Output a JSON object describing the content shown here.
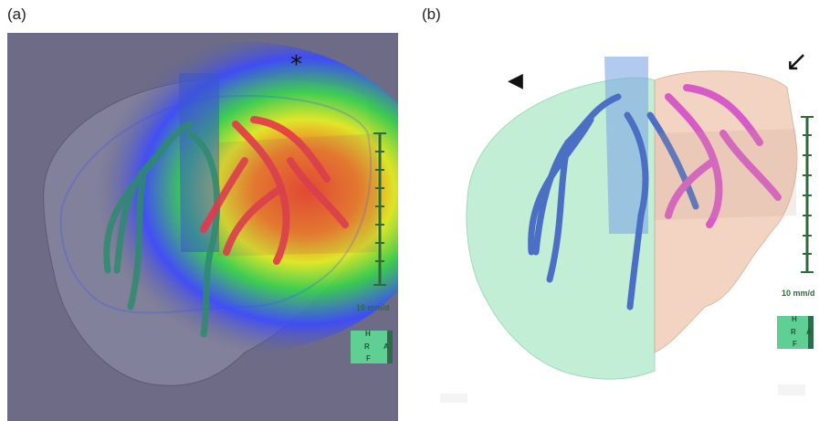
{
  "panels": [
    {
      "label": "(a)",
      "scale_label": "10 mm/d",
      "orientation": {
        "top": "H",
        "middle": "R",
        "right": "A",
        "bottom": "F"
      },
      "marker": "*"
    },
    {
      "label": "(b)",
      "scale_label": "10 mm/d",
      "orientation": {
        "top": "H",
        "middle": "R",
        "right": "A",
        "bottom": "F"
      },
      "markers": {
        "arrowhead": "◀",
        "arrow": "↙"
      }
    }
  ],
  "colors": {
    "panel_a_background": "#6d6b86",
    "vessel_blue": "#4a6fc4",
    "vessel_pink": "#d65ac8",
    "liver_green": "#b8ecd0",
    "liver_peach": "#f1cdb8",
    "scale_green": "#2e6b3a"
  }
}
